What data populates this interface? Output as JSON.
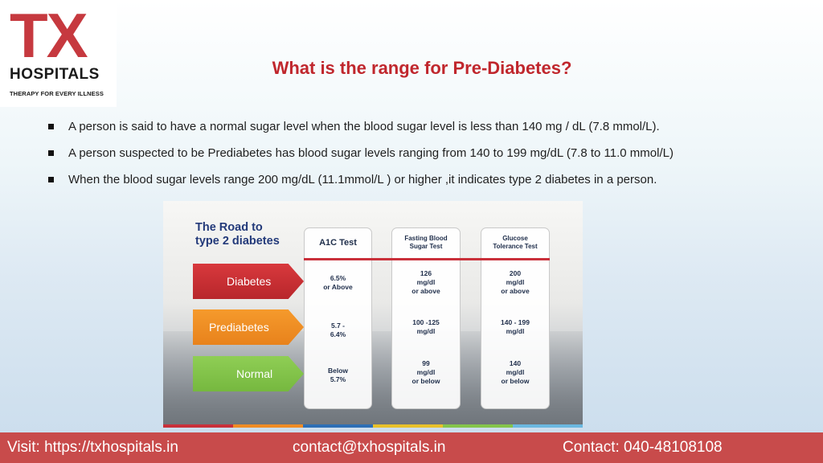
{
  "logo": {
    "brand": "TX",
    "name": "HOSPITALS",
    "tagline": "THERAPY FOR EVERY ILLNESS",
    "brand_color": "#c6393f"
  },
  "title": "What is the range for Pre-Diabetes?",
  "bullets": [
    "A person is said to have a normal sugar level when the blood sugar level is less than 140 mg / dL (7.8 mmol/L).",
    "A person suspected to be Prediabetes has blood sugar levels ranging from 140 to 199 mg/dL (7.8 to 11.0 mmol/L)",
    "When the blood sugar levels range 200 mg/dL (11.1mmol/L ) or higher ,it indicates type 2 diabetes in a person."
  ],
  "infographic": {
    "title_line1": "The Road to",
    "title_line2": "type 2 diabetes",
    "columns": {
      "a1c": "A1C Test",
      "fbs": "Fasting Blood\nSugar Test",
      "gtt": "Glucose\nTolerance Test"
    },
    "rows": [
      {
        "label": "Diabetes",
        "a1c": "6.5%\nor Above",
        "fbs": "126\nmg/dl\nor above",
        "gtt": "200\nmg/dl\nor above",
        "color": "#c9303a"
      },
      {
        "label": "Prediabetes",
        "a1c": "5.7 -\n6.4%",
        "fbs": "100 -125\nmg/dl",
        "gtt": "140 - 199\nmg/dl",
        "color": "#f08c24"
      },
      {
        "label": "Normal",
        "a1c": "Below\n5.7%",
        "fbs": "99\nmg/dl\nor below",
        "gtt": "140\nmg/dl\nor below",
        "color": "#84c54b"
      }
    ],
    "stripe_colors": [
      "#c9303a",
      "#f08c24",
      "#2d6fb5",
      "#e8c12a",
      "#84c54b",
      "#6bb8e0"
    ]
  },
  "footer": {
    "visit": "Visit: https://txhospitals.in",
    "email": "contact@txhospitals.in",
    "contact": "Contact: 040-48108108",
    "bg_color": "#c84b4b"
  }
}
